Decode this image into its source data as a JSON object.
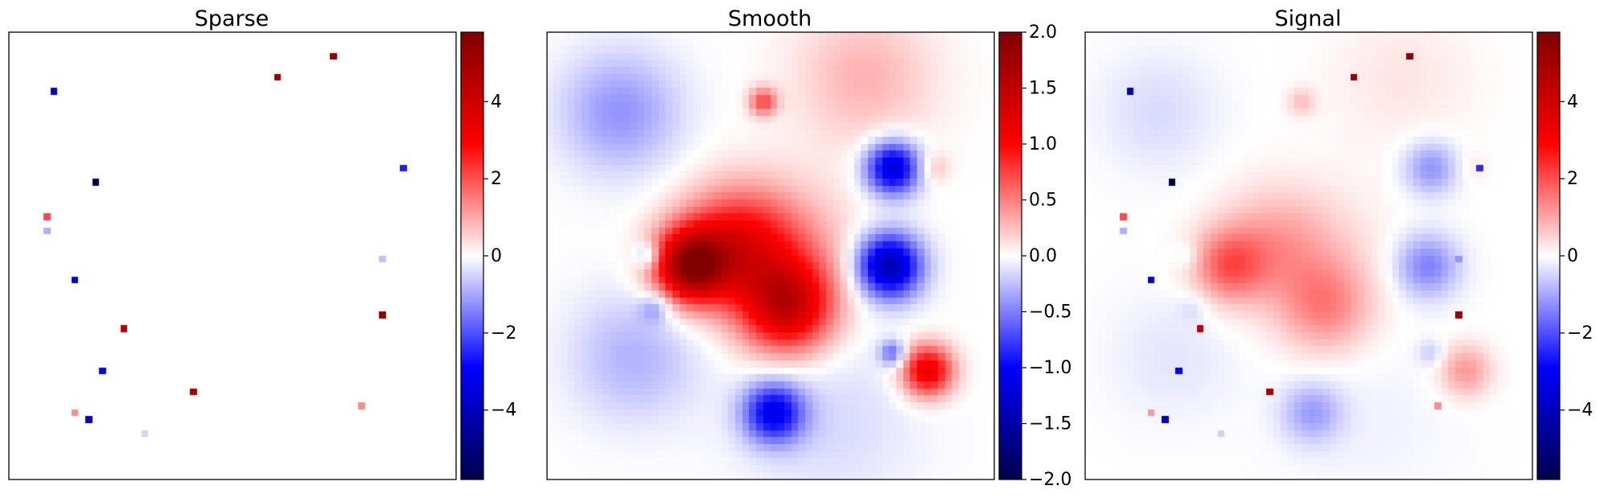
{
  "chart_data": [
    {
      "type": "heatmap",
      "title": "Sparse",
      "colormap": "seismic",
      "grid_size": [
        64,
        64
      ],
      "background_value": 0,
      "vmin": -5.8,
      "vmax": 5.8,
      "colorbar_ticks": [
        "4",
        "2",
        "0",
        "−2",
        "−4"
      ],
      "colorbar_tick_values": [
        4,
        2,
        0,
        -2,
        -4
      ],
      "points": [
        {
          "x": 45.5,
          "y": 3.2,
          "v": 5.3
        },
        {
          "x": 37.5,
          "y": 6.2,
          "v": 5.2
        },
        {
          "x": 6.3,
          "y": 8.3,
          "v": -3.6
        },
        {
          "x": 55.6,
          "y": 19.3,
          "v": -2.6
        },
        {
          "x": 12.3,
          "y": 21.3,
          "v": -5.7
        },
        {
          "x": 4.5,
          "y": 26.3,
          "v": 2.1
        },
        {
          "x": 4.5,
          "y": 28.3,
          "v": -0.9
        },
        {
          "x": 52.6,
          "y": 32.4,
          "v": -0.7
        },
        {
          "x": 9.2,
          "y": 35.4,
          "v": -3.6
        },
        {
          "x": 52.6,
          "y": 40.4,
          "v": 5.3
        },
        {
          "x": 16.3,
          "y": 42.4,
          "v": 4.6
        },
        {
          "x": 13.3,
          "y": 47.5,
          "v": -2.9
        },
        {
          "x": 26.4,
          "y": 50.6,
          "v": 5.0
        },
        {
          "x": 49.6,
          "y": 52.6,
          "v": 1.3
        },
        {
          "x": 9.4,
          "y": 53.6,
          "v": 1.3
        },
        {
          "x": 11.4,
          "y": 54.6,
          "v": -4.0
        },
        {
          "x": 19.4,
          "y": 56.7,
          "v": -0.5
        }
      ]
    },
    {
      "type": "heatmap",
      "title": "Smooth",
      "colormap": "seismic",
      "grid_size": [
        64,
        64
      ],
      "vmin": -2.0,
      "vmax": 2.0,
      "colorbar_ticks": [
        "2.0",
        "1.5",
        "1.0",
        "0.5",
        "0.0",
        "−0.5",
        "−1.0",
        "−1.5",
        "−2.0"
      ],
      "colorbar_tick_values": [
        2.0,
        1.5,
        1.0,
        0.5,
        0.0,
        -0.5,
        -1.0,
        -1.5,
        -2.0
      ],
      "blobs": [
        {
          "x": 10,
          "y": 11,
          "amp": -0.42,
          "sigma": 6
        },
        {
          "x": 45,
          "y": 6,
          "amp": 0.3,
          "sigma": 7
        },
        {
          "x": 30.5,
          "y": 9.5,
          "amp": 0.7,
          "sigma": 1.4
        },
        {
          "x": 49,
          "y": 19,
          "amp": -1.25,
          "sigma": 2.7
        },
        {
          "x": 55,
          "y": 19,
          "amp": 0.25,
          "sigma": 1.5
        },
        {
          "x": 20,
          "y": 33,
          "amp": 1.65,
          "sigma": 3.6
        },
        {
          "x": 26,
          "y": 30,
          "amp": 0.8,
          "sigma": 5.5
        },
        {
          "x": 34,
          "y": 39,
          "amp": 1.2,
          "sigma": 4.5
        },
        {
          "x": 32,
          "y": 32,
          "amp": 0.55,
          "sigma": 7
        },
        {
          "x": 14,
          "y": 31.5,
          "amp": -0.45,
          "sigma": 1.3
        },
        {
          "x": 48.5,
          "y": 33,
          "amp": -1.45,
          "sigma": 3.2
        },
        {
          "x": 49,
          "y": 45.5,
          "amp": -0.6,
          "sigma": 1.3
        },
        {
          "x": 54,
          "y": 48,
          "amp": 1.2,
          "sigma": 2.6
        },
        {
          "x": 32,
          "y": 54,
          "amp": -1.05,
          "sigma": 3
        },
        {
          "x": 12,
          "y": 46,
          "amp": -0.3,
          "sigma": 6.5
        },
        {
          "x": 15,
          "y": 39,
          "amp": -0.35,
          "sigma": 1.5
        },
        {
          "x": 40,
          "y": 55,
          "amp": -0.15,
          "sigma": 9
        }
      ]
    },
    {
      "type": "heatmap",
      "title": "Signal",
      "colormap": "seismic",
      "grid_size": [
        64,
        64
      ],
      "vmin": -5.8,
      "vmax": 5.8,
      "composition": "Sparse + Smooth",
      "colorbar_ticks": [
        "4",
        "2",
        "0",
        "−2",
        "−4"
      ],
      "colorbar_tick_values": [
        4,
        2,
        0,
        -2,
        -4
      ]
    }
  ]
}
